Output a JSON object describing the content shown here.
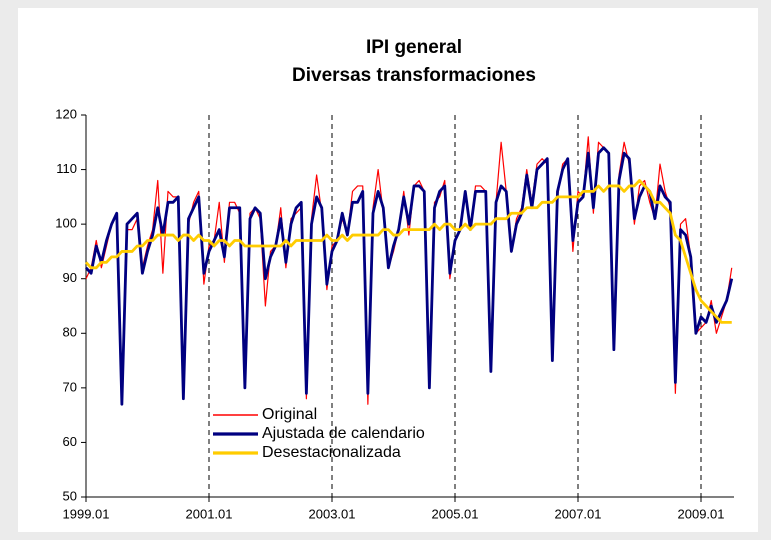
{
  "chart_data": {
    "type": "line",
    "title": [
      "IPI general",
      "Diversas transformaciones"
    ],
    "categories": [
      "1999.01",
      null,
      null,
      null,
      null,
      null,
      null,
      null,
      null,
      null,
      null,
      null,
      null,
      null,
      null,
      null,
      null,
      null,
      null,
      null,
      null,
      null,
      null,
      null,
      "2001.01",
      null,
      null,
      null,
      null,
      null,
      null,
      null,
      null,
      null,
      null,
      null,
      null,
      null,
      null,
      null,
      null,
      null,
      null,
      null,
      null,
      null,
      null,
      null,
      "2003.01",
      null,
      null,
      null,
      null,
      null,
      null,
      null,
      null,
      null,
      null,
      null,
      null,
      null,
      null,
      null,
      null,
      null,
      null,
      null,
      null,
      null,
      null,
      null,
      "2005.01",
      null,
      null,
      null,
      null,
      null,
      null,
      null,
      null,
      null,
      null,
      null,
      null,
      null,
      null,
      null,
      null,
      null,
      null,
      null,
      null,
      null,
      null,
      null,
      "2007.01",
      null,
      null,
      null,
      null,
      null,
      null,
      null,
      null,
      null,
      null,
      null,
      null,
      null,
      null,
      null,
      null,
      null,
      null,
      null,
      null,
      null,
      null,
      null,
      "2009.01",
      null,
      null,
      null,
      null,
      null,
      null
    ],
    "series": [
      {
        "name": "Original",
        "color": "#ff0000",
        "values": [
          90,
          92,
          97,
          92,
          96,
          100,
          102,
          67,
          99,
          99,
          101,
          92,
          96,
          99,
          108,
          91,
          106,
          105,
          105,
          68,
          100,
          104,
          106,
          89,
          96,
          97,
          104,
          93,
          104,
          104,
          102,
          70,
          102,
          103,
          101,
          85,
          95,
          96,
          103,
          92,
          101,
          102,
          103,
          68,
          101,
          109,
          102,
          88,
          96,
          97,
          101,
          98,
          106,
          107,
          107,
          67,
          103,
          110,
          102,
          92,
          95,
          99,
          106,
          98,
          107,
          108,
          106,
          70,
          104,
          105,
          108,
          90,
          97,
          99,
          106,
          99,
          107,
          107,
          106,
          73,
          104,
          115,
          106,
          95,
          101,
          103,
          110,
          104,
          111,
          112,
          111,
          75,
          105,
          111,
          112,
          95,
          106,
          105,
          116,
          102,
          115,
          114,
          113,
          77,
          109,
          115,
          111,
          100,
          107,
          108,
          104,
          101,
          111,
          106,
          103,
          69,
          100,
          101,
          94,
          80,
          81,
          82,
          86,
          80,
          83,
          86,
          92
        ]
      },
      {
        "name": "Ajustada de calendario",
        "color": "#000080",
        "values": [
          92,
          91,
          96,
          93,
          97,
          100,
          102,
          67,
          100,
          101,
          102,
          91,
          95,
          98,
          103,
          98,
          104,
          104,
          105,
          68,
          101,
          103,
          105,
          91,
          95,
          97,
          99,
          94,
          103,
          103,
          103,
          70,
          101,
          103,
          102,
          90,
          94,
          96,
          101,
          93,
          100,
          103,
          104,
          69,
          100,
          105,
          103,
          89,
          95,
          97,
          102,
          98,
          104,
          104,
          106,
          69,
          102,
          106,
          103,
          92,
          96,
          99,
          105,
          100,
          107,
          107,
          106,
          70,
          103,
          106,
          107,
          91,
          97,
          99,
          106,
          99,
          106,
          106,
          106,
          73,
          104,
          107,
          106,
          95,
          100,
          102,
          109,
          103,
          110,
          111,
          112,
          75,
          106,
          110,
          112,
          97,
          104,
          105,
          113,
          103,
          113,
          114,
          113,
          77,
          108,
          113,
          112,
          101,
          105,
          107,
          106,
          101,
          107,
          105,
          104,
          71,
          99,
          98,
          94,
          80,
          83,
          82,
          85,
          82,
          84,
          86,
          90
        ]
      },
      {
        "name": "Desestacionalizada",
        "color": "#ffcc00",
        "values": [
          93,
          92,
          92,
          93,
          93,
          94,
          94,
          95,
          95,
          95,
          96,
          96,
          97,
          97,
          98,
          98,
          98,
          98,
          97,
          98,
          98,
          97,
          98,
          97,
          97,
          96,
          97,
          97,
          96,
          97,
          97,
          96,
          96,
          96,
          96,
          96,
          96,
          96,
          96,
          97,
          96,
          97,
          97,
          97,
          97,
          97,
          97,
          98,
          97,
          97,
          98,
          97,
          98,
          98,
          98,
          98,
          98,
          98,
          99,
          99,
          98,
          98,
          99,
          99,
          99,
          99,
          99,
          99,
          100,
          99,
          100,
          100,
          99,
          99,
          100,
          99,
          100,
          100,
          100,
          100,
          101,
          101,
          101,
          102,
          102,
          102,
          103,
          103,
          103,
          104,
          104,
          104,
          105,
          105,
          105,
          105,
          105,
          106,
          106,
          106,
          107,
          106,
          107,
          107,
          107,
          106,
          107,
          107,
          108,
          107,
          106,
          104,
          104,
          103,
          102,
          98,
          97,
          94,
          91,
          88,
          86,
          85,
          84,
          83,
          82,
          82,
          82
        ]
      }
    ],
    "ylim": [
      50,
      120
    ],
    "yticks": [
      50,
      60,
      70,
      80,
      90,
      100,
      110,
      120
    ],
    "xgrid": true
  }
}
